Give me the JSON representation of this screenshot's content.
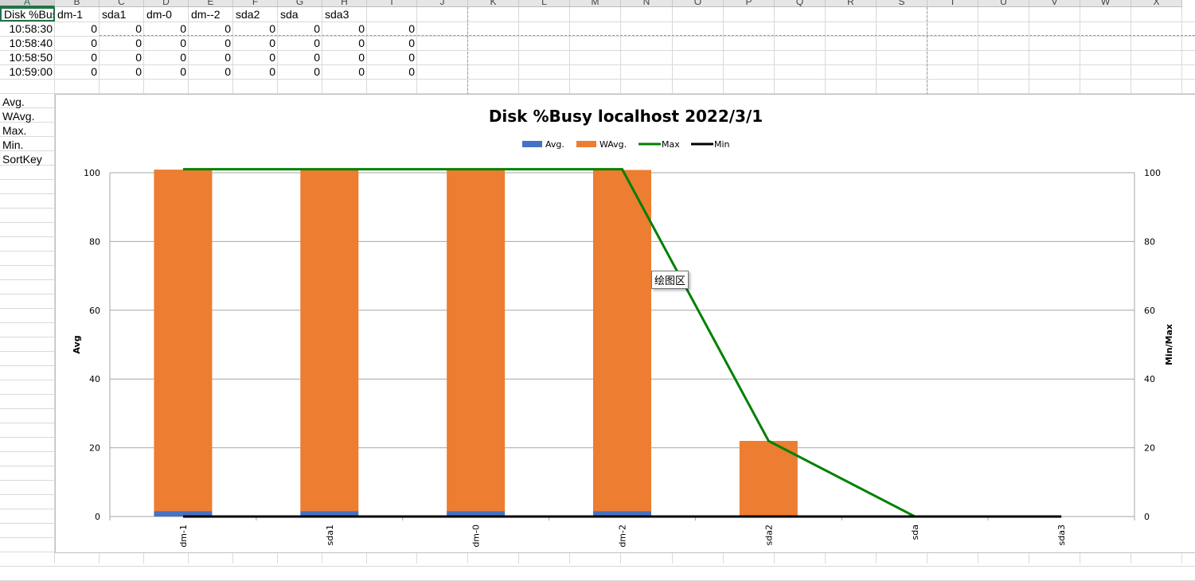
{
  "sheet": {
    "columns": [
      "A",
      "B",
      "C",
      "D",
      "E",
      "F",
      "G",
      "H",
      "I",
      "J",
      "K",
      "L",
      "M",
      "N",
      "O",
      "P",
      "Q",
      "R",
      "S",
      "T",
      "U",
      "V",
      "W",
      "X"
    ],
    "selected_column": "A",
    "header_row": [
      "Disk %Busy",
      "dm-1",
      "sda1",
      "dm-0",
      "dm--2",
      "sda2",
      "sda",
      "sda3",
      ""
    ],
    "data_rows": [
      [
        "10:58:30",
        "0",
        "0",
        "0",
        "0",
        "0",
        "0",
        "0",
        "0"
      ],
      [
        "10:58:40",
        "0",
        "0",
        "0",
        "0",
        "0",
        "0",
        "0",
        "0"
      ],
      [
        "10:58:50",
        "0",
        "0",
        "0",
        "0",
        "0",
        "0",
        "0",
        "0"
      ],
      [
        "10:59:00",
        "0",
        "0",
        "0",
        "0",
        "0",
        "0",
        "0",
        "0"
      ]
    ],
    "summary_labels": [
      "Avg.",
      "WAvg.",
      "Max.",
      "Min.",
      "SortKey"
    ]
  },
  "chart_data": {
    "type": "bar",
    "title": "Disk %Busy localhost  2022/3/1",
    "categories": [
      "dm-1",
      "sda1",
      "dm-0",
      "dm-2",
      "sda2",
      "sda",
      "sda3"
    ],
    "series": [
      {
        "name": "Avg.",
        "kind": "stacked-bar",
        "axis": "left",
        "color": "#4472c4",
        "values": [
          1.6,
          1.6,
          1.6,
          1.6,
          0,
          0,
          0
        ]
      },
      {
        "name": "WAvg.",
        "kind": "stacked-bar",
        "axis": "left",
        "color": "#ed7d31",
        "values": [
          99.3,
          99.3,
          99.3,
          99.2,
          22,
          0,
          0
        ]
      },
      {
        "name": "Max",
        "kind": "line",
        "axis": "right",
        "color": "#008000",
        "values": [
          101,
          101,
          101,
          101,
          22,
          0,
          0
        ]
      },
      {
        "name": "Min",
        "kind": "line",
        "axis": "right",
        "color": "#000000",
        "values": [
          0,
          0,
          0,
          0,
          0,
          0,
          0
        ]
      }
    ],
    "ylabel": "Avg",
    "y2label": "Min/Max",
    "ylim": [
      0,
      100
    ],
    "y2lim": [
      0,
      100
    ],
    "yticks": [
      0,
      20,
      40,
      60,
      80,
      100
    ],
    "grid": true,
    "legend": "top"
  },
  "tooltip": "绘图区"
}
